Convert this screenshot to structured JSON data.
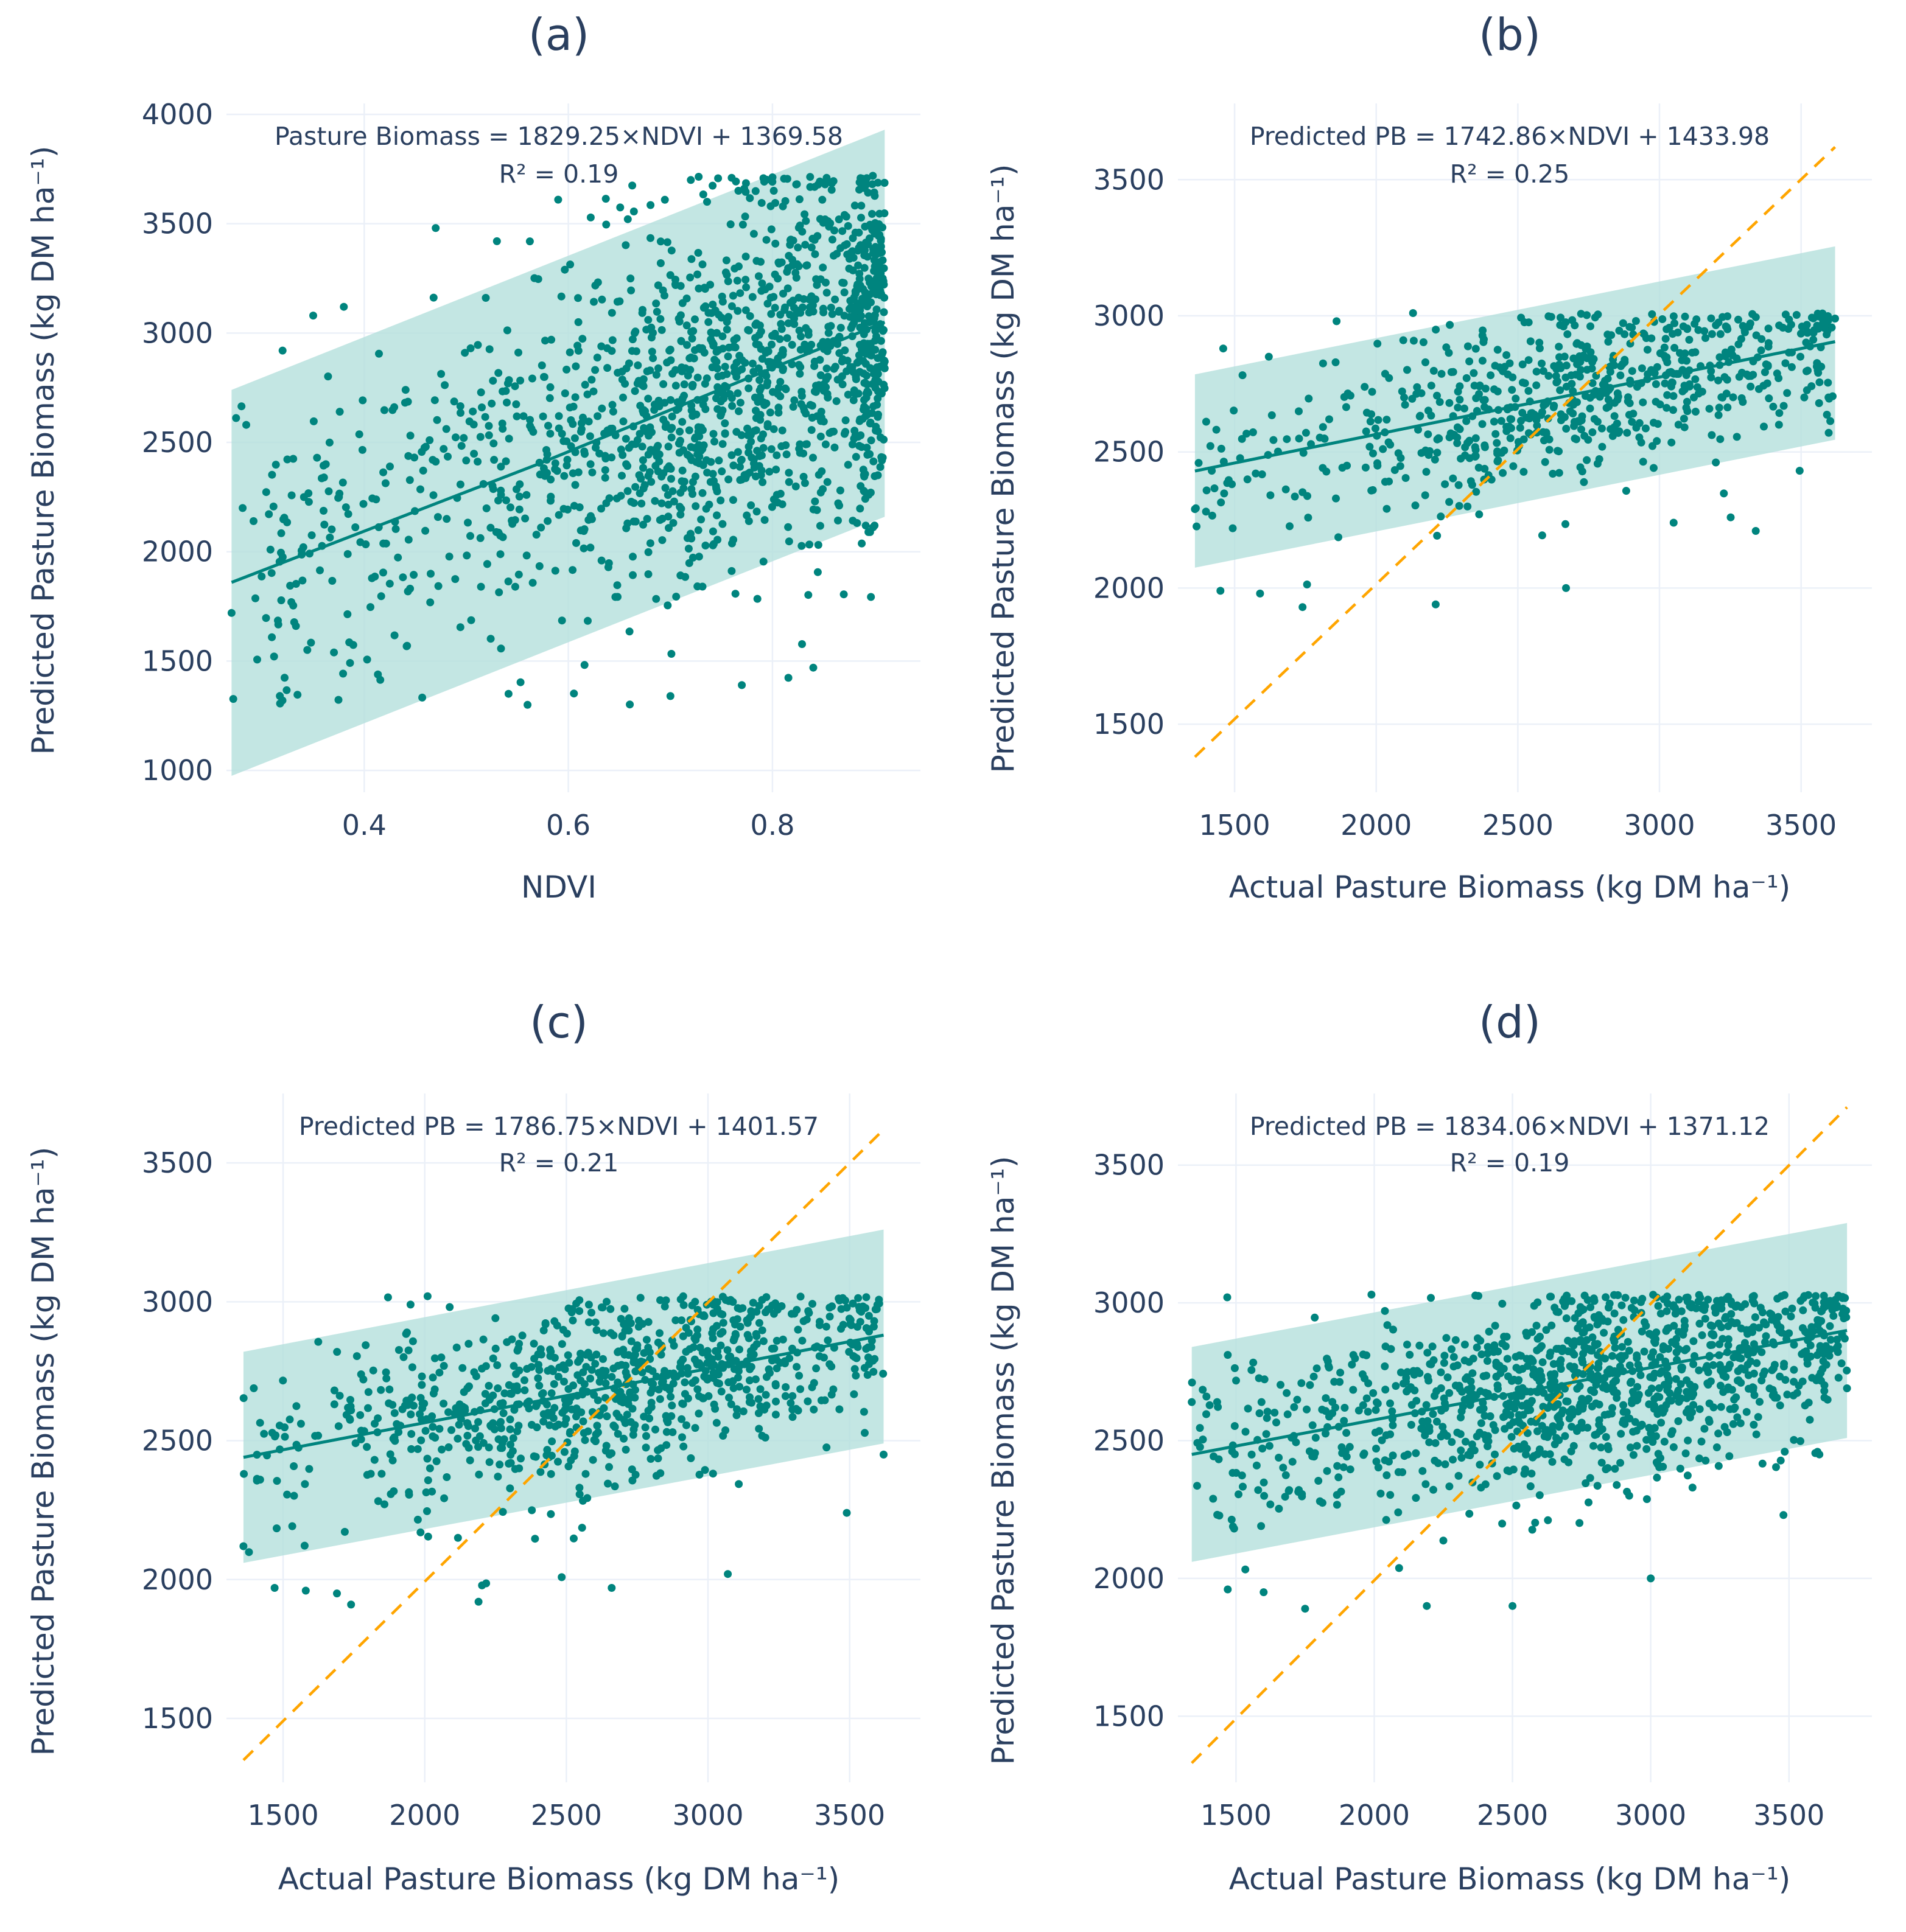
{
  "colors": {
    "points": "#00847e",
    "fit_line": "#00847e",
    "band": "#b2dfdb",
    "identity_line": "#ffa500",
    "text": "#2a3f5f",
    "grid": "#ebf0f8"
  },
  "chart_data": [
    {
      "panel": "(a)",
      "type": "scatter",
      "equation": "Pasture Biomass = 1829.25×NDVI + 1369.58",
      "r2": "R² = 0.19",
      "xlabel": "NDVI",
      "ylabel": "Predicted Pasture Biomass (kg DM ha⁻¹)",
      "xlim": [
        0.265,
        0.945
      ],
      "ylim": [
        900,
        4050
      ],
      "xticks": [
        0.4,
        0.6,
        0.8
      ],
      "xtick_labels": [
        "0.4",
        "0.6",
        "0.8"
      ],
      "yticks": [
        1000,
        1500,
        2000,
        2500,
        3000,
        3500,
        4000
      ],
      "ytick_labels": [
        "1000",
        "1500",
        "2000",
        "2500",
        "3000",
        "3500",
        "4000"
      ],
      "fit_line": {
        "x": [
          0.27,
          0.57,
          0.91
        ],
        "y": [
          1860,
          2400,
          3050
        ]
      },
      "band": {
        "x": [
          0.27,
          0.91
        ],
        "upper": [
          2740,
          3930
        ],
        "lower": [
          975,
          2160
        ]
      },
      "identity_line": null,
      "points_n": 1500,
      "point_cloud": {
        "x_min": 0.27,
        "x_max": 0.91,
        "x_center": 0.79,
        "y_min": 1300,
        "y_max": 3720,
        "slope": 1860,
        "resid_sd": 430
      },
      "sample_points": [
        [
          0.27,
          1720
        ],
        [
          0.32,
          2920
        ],
        [
          0.35,
          3080
        ],
        [
          0.38,
          3120
        ],
        [
          0.47,
          3480
        ],
        [
          0.53,
          3420
        ],
        [
          0.59,
          3610
        ],
        [
          0.72,
          3700
        ],
        [
          0.76,
          3710
        ],
        [
          0.56,
          1300
        ],
        [
          0.7,
          1340
        ],
        [
          0.77,
          1390
        ],
        [
          0.84,
          1470
        ],
        [
          0.9,
          2120
        ],
        [
          0.91,
          2870
        ]
      ]
    },
    {
      "panel": "(b)",
      "type": "scatter",
      "equation": "Predicted PB = 1742.86×NDVI + 1433.98",
      "r2": "R² = 0.25",
      "xlabel": "Actual Pasture Biomass (kg DM ha⁻¹)",
      "ylabel": "Predicted Pasture Biomass (kg DM ha⁻¹)",
      "xlim": [
        1300,
        3750
      ],
      "ylim": [
        1250,
        3780
      ],
      "xticks": [
        1500,
        2000,
        2500,
        3000,
        3500
      ],
      "xtick_labels": [
        "1500",
        "2000",
        "2500",
        "3000",
        "3500"
      ],
      "yticks": [
        1500,
        2000,
        2500,
        3000,
        3500
      ],
      "ytick_labels": [
        "1500",
        "2000",
        "2500",
        "3000",
        "3500"
      ],
      "fit_line": {
        "x": [
          1360,
          3620
        ],
        "y": [
          2430,
          2905
        ]
      },
      "band": {
        "x": [
          1360,
          3620
        ],
        "upper": [
          2785,
          3255
        ],
        "lower": [
          2075,
          2545
        ]
      },
      "identity_line": {
        "x": [
          1360,
          3620
        ],
        "y": [
          1380,
          3620
        ]
      },
      "points_n": 700,
      "point_cloud": {
        "x_min": 1360,
        "x_max": 3620,
        "x_center": 2800,
        "y_min": 1930,
        "y_max": 3010,
        "y_max_cap": 3010,
        "slope": 0.21,
        "intercept": 2145,
        "resid_sd": 165
      },
      "sample_points": [
        [
          1360,
          2290
        ],
        [
          1460,
          2880
        ],
        [
          1450,
          1990
        ],
        [
          1590,
          1980
        ],
        [
          1740,
          1930
        ],
        [
          2210,
          1940
        ],
        [
          2670,
          2000
        ],
        [
          3050,
          2240
        ],
        [
          3340,
          2210
        ],
        [
          1860,
          2980
        ],
        [
          2130,
          3010
        ],
        [
          3620,
          2990
        ]
      ]
    },
    {
      "panel": "(c)",
      "type": "scatter",
      "equation": "Predicted PB = 1786.75×NDVI + 1401.57",
      "r2": "R² = 0.21",
      "xlabel": "Actual Pasture Biomass (kg DM ha⁻¹)",
      "ylabel": "Predicted Pasture Biomass (kg DM ha⁻¹)",
      "xlim": [
        1300,
        3750
      ],
      "ylim": [
        1270,
        3750
      ],
      "xticks": [
        1500,
        2000,
        2500,
        3000,
        3500
      ],
      "xtick_labels": [
        "1500",
        "2000",
        "2500",
        "3000",
        "3500"
      ],
      "yticks": [
        1500,
        2000,
        2500,
        3000,
        3500
      ],
      "ytick_labels": [
        "1500",
        "2000",
        "2500",
        "3000",
        "3500"
      ],
      "fit_line": {
        "x": [
          1360,
          3620
        ],
        "y": [
          2440,
          2880
        ]
      },
      "band": {
        "x": [
          1360,
          3620
        ],
        "upper": [
          2820,
          3260
        ],
        "lower": [
          2060,
          2490
        ]
      },
      "identity_line": {
        "x": [
          1360,
          3620
        ],
        "y": [
          1350,
          3620
        ]
      },
      "points_n": 900,
      "point_cloud": {
        "x_min": 1360,
        "x_max": 3620,
        "x_center": 2700,
        "y_min": 1910,
        "y_max": 3030,
        "y_max_cap": 3020,
        "slope": 0.195,
        "intercept": 2175,
        "resid_sd": 180
      },
      "sample_points": [
        [
          1360,
          2120
        ],
        [
          1470,
          1970
        ],
        [
          1580,
          1960
        ],
        [
          1690,
          1950
        ],
        [
          1740,
          1910
        ],
        [
          2190,
          1920
        ],
        [
          2660,
          1970
        ],
        [
          3070,
          2020
        ],
        [
          3620,
          2450
        ],
        [
          3490,
          2240
        ],
        [
          1950,
          2990
        ],
        [
          2010,
          3020
        ]
      ]
    },
    {
      "panel": "(d)",
      "type": "scatter",
      "equation": "Predicted PB = 1834.06×NDVI + 1371.12",
      "r2": "R² = 0.19",
      "xlabel": "Actual Pasture Biomass (kg DM ha⁻¹)",
      "ylabel": "Predicted Pasture Biomass (kg DM ha⁻¹)",
      "xlim": [
        1290,
        3800
      ],
      "ylim": [
        1260,
        3760
      ],
      "xticks": [
        1500,
        2000,
        2500,
        3000,
        3500
      ],
      "xtick_labels": [
        "1500",
        "2000",
        "2500",
        "3000",
        "3500"
      ],
      "yticks": [
        1500,
        2000,
        2500,
        3000,
        3500
      ],
      "ytick_labels": [
        "1500",
        "2000",
        "2500",
        "3000",
        "3500"
      ],
      "fit_line": {
        "x": [
          1340,
          3710
        ],
        "y": [
          2450,
          2900
        ]
      },
      "band": {
        "x": [
          1340,
          3710
        ],
        "upper": [
          2840,
          3290
        ],
        "lower": [
          2060,
          2510
        ]
      },
      "identity_line": {
        "x": [
          1340,
          3710
        ],
        "y": [
          1330,
          3710
        ]
      },
      "points_n": 1200,
      "point_cloud": {
        "x_min": 1340,
        "x_max": 3710,
        "x_center": 2850,
        "y_min": 1890,
        "y_max": 3030,
        "y_max_cap": 3030,
        "slope": 0.19,
        "intercept": 2195,
        "resid_sd": 180
      },
      "sample_points": [
        [
          1340,
          2640
        ],
        [
          1470,
          1960
        ],
        [
          1600,
          1950
        ],
        [
          1750,
          1890
        ],
        [
          2190,
          1900
        ],
        [
          2500,
          1900
        ],
        [
          3000,
          2000
        ],
        [
          3480,
          2230
        ],
        [
          3710,
          2690
        ],
        [
          3610,
          2450
        ],
        [
          1990,
          3030
        ]
      ]
    }
  ]
}
